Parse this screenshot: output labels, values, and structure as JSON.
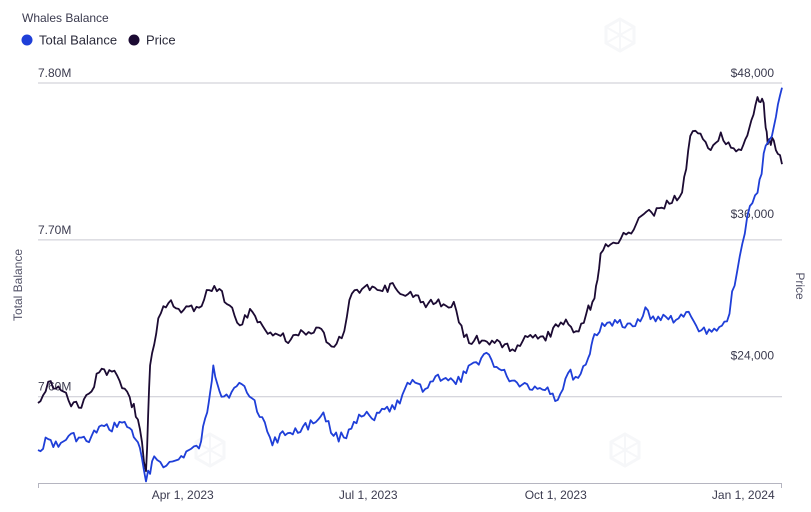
{
  "chart_data": {
    "type": "line",
    "title": "Whales Balance",
    "xlabel": "",
    "ylabel": "Total Balance",
    "y2label": "Price",
    "xlim": [
      "2023-01-20",
      "2024-01-20"
    ],
    "ylim": [
      7.545,
      7.8
    ],
    "y2lim": [
      14000,
      48000
    ],
    "legend_position": "top-left",
    "grid": "horizontal",
    "x_ticks": [
      {
        "date": "2023-04-01",
        "label": "Apr 1, 2023"
      },
      {
        "date": "2023-07-01",
        "label": "Jul 1, 2023"
      },
      {
        "date": "2023-10-01",
        "label": "Oct 1, 2023"
      },
      {
        "date": "2024-01-01",
        "label": "Jan 1, 2024"
      }
    ],
    "y_ticks": [
      {
        "value": 7.8,
        "label": "7.80M"
      },
      {
        "value": 7.7,
        "label": "7.70M"
      },
      {
        "value": 7.6,
        "label": "7.60M"
      }
    ],
    "y2_ticks": [
      {
        "value": 48000,
        "label": "$48,000"
      },
      {
        "value": 36000,
        "label": "$36,000"
      },
      {
        "value": 24000,
        "label": "$24,000"
      }
    ],
    "series": [
      {
        "name": "Total Balance",
        "axis": "left",
        "color": "#1f3fd8",
        "points": [
          [
            "2023-01-20",
            7.566
          ],
          [
            "2023-01-25",
            7.573
          ],
          [
            "2023-01-30",
            7.568
          ],
          [
            "2023-02-04",
            7.575
          ],
          [
            "2023-02-09",
            7.574
          ],
          [
            "2023-02-14",
            7.571
          ],
          [
            "2023-02-19",
            7.581
          ],
          [
            "2023-02-24",
            7.579
          ],
          [
            "2023-03-01",
            7.584
          ],
          [
            "2023-03-06",
            7.58
          ],
          [
            "2023-03-10",
            7.571
          ],
          [
            "2023-03-14",
            7.546
          ],
          [
            "2023-03-18",
            7.562
          ],
          [
            "2023-03-24",
            7.556
          ],
          [
            "2023-03-30",
            7.56
          ],
          [
            "2023-04-04",
            7.566
          ],
          [
            "2023-04-09",
            7.567
          ],
          [
            "2023-04-13",
            7.59
          ],
          [
            "2023-04-16",
            7.62
          ],
          [
            "2023-04-20",
            7.6
          ],
          [
            "2023-04-25",
            7.603
          ],
          [
            "2023-04-30",
            7.608
          ],
          [
            "2023-05-05",
            7.599
          ],
          [
            "2023-05-10",
            7.587
          ],
          [
            "2023-05-15",
            7.569
          ],
          [
            "2023-05-20",
            7.578
          ],
          [
            "2023-05-25",
            7.576
          ],
          [
            "2023-05-30",
            7.581
          ],
          [
            "2023-06-04",
            7.583
          ],
          [
            "2023-06-09",
            7.59
          ],
          [
            "2023-06-14",
            7.575
          ],
          [
            "2023-06-19",
            7.574
          ],
          [
            "2023-06-24",
            7.584
          ],
          [
            "2023-06-29",
            7.588
          ],
          [
            "2023-07-04",
            7.585
          ],
          [
            "2023-07-09",
            7.592
          ],
          [
            "2023-07-14",
            7.592
          ],
          [
            "2023-07-19",
            7.605
          ],
          [
            "2023-07-24",
            7.609
          ],
          [
            "2023-07-29",
            7.605
          ],
          [
            "2023-08-03",
            7.613
          ],
          [
            "2023-08-08",
            7.612
          ],
          [
            "2023-08-13",
            7.608
          ],
          [
            "2023-08-18",
            7.615
          ],
          [
            "2023-08-23",
            7.622
          ],
          [
            "2023-08-28",
            7.628
          ],
          [
            "2023-09-02",
            7.619
          ],
          [
            "2023-09-07",
            7.613
          ],
          [
            "2023-09-12",
            7.609
          ],
          [
            "2023-09-17",
            7.608
          ],
          [
            "2023-09-22",
            7.605
          ],
          [
            "2023-09-27",
            7.606
          ],
          [
            "2023-10-02",
            7.598
          ],
          [
            "2023-10-07",
            7.615
          ],
          [
            "2023-10-12",
            7.612
          ],
          [
            "2023-10-17",
            7.625
          ],
          [
            "2023-10-20",
            7.64
          ],
          [
            "2023-10-25",
            7.645
          ],
          [
            "2023-10-30",
            7.649
          ],
          [
            "2023-11-04",
            7.644
          ],
          [
            "2023-11-09",
            7.645
          ],
          [
            "2023-11-14",
            7.657
          ],
          [
            "2023-11-19",
            7.648
          ],
          [
            "2023-11-24",
            7.651
          ],
          [
            "2023-11-29",
            7.649
          ],
          [
            "2023-12-04",
            7.654
          ],
          [
            "2023-12-09",
            7.645
          ],
          [
            "2023-12-14",
            7.64
          ],
          [
            "2023-12-19",
            7.642
          ],
          [
            "2023-12-24",
            7.648
          ],
          [
            "2023-12-29",
            7.68
          ],
          [
            "2024-01-03",
            7.715
          ],
          [
            "2024-01-08",
            7.73
          ],
          [
            "2024-01-12",
            7.76
          ],
          [
            "2024-01-16",
            7.772
          ],
          [
            "2024-01-20",
            7.797
          ]
        ]
      },
      {
        "name": "Price",
        "axis": "right",
        "color": "#1c0b33",
        "points": [
          [
            "2023-01-20",
            20800
          ],
          [
            "2023-01-25",
            22600
          ],
          [
            "2023-01-30",
            22200
          ],
          [
            "2023-02-04",
            21000
          ],
          [
            "2023-02-09",
            20400
          ],
          [
            "2023-02-14",
            21600
          ],
          [
            "2023-02-19",
            23400
          ],
          [
            "2023-02-24",
            23600
          ],
          [
            "2023-03-01",
            22700
          ],
          [
            "2023-03-06",
            21300
          ],
          [
            "2023-03-10",
            19400
          ],
          [
            "2023-03-14",
            15000
          ],
          [
            "2023-03-16",
            24000
          ],
          [
            "2023-03-20",
            28000
          ],
          [
            "2023-03-25",
            29300
          ],
          [
            "2023-03-30",
            28800
          ],
          [
            "2023-04-04",
            29000
          ],
          [
            "2023-04-09",
            28900
          ],
          [
            "2023-04-14",
            30400
          ],
          [
            "2023-04-19",
            30500
          ],
          [
            "2023-04-24",
            29100
          ],
          [
            "2023-04-29",
            27400
          ],
          [
            "2023-05-04",
            28800
          ],
          [
            "2023-05-09",
            27700
          ],
          [
            "2023-05-14",
            26800
          ],
          [
            "2023-05-19",
            26500
          ],
          [
            "2023-05-24",
            26200
          ],
          [
            "2023-05-29",
            27000
          ],
          [
            "2023-06-03",
            26700
          ],
          [
            "2023-06-08",
            27100
          ],
          [
            "2023-06-13",
            25600
          ],
          [
            "2023-06-18",
            26300
          ],
          [
            "2023-06-23",
            30100
          ],
          [
            "2023-06-28",
            30500
          ],
          [
            "2023-07-03",
            30700
          ],
          [
            "2023-07-08",
            30300
          ],
          [
            "2023-07-13",
            31000
          ],
          [
            "2023-07-18",
            30000
          ],
          [
            "2023-07-23",
            29800
          ],
          [
            "2023-07-28",
            29400
          ],
          [
            "2023-08-02",
            29200
          ],
          [
            "2023-08-07",
            29200
          ],
          [
            "2023-08-12",
            29400
          ],
          [
            "2023-08-17",
            26400
          ],
          [
            "2023-08-22",
            26100
          ],
          [
            "2023-08-27",
            26100
          ],
          [
            "2023-09-01",
            25900
          ],
          [
            "2023-09-06",
            25800
          ],
          [
            "2023-09-11",
            25200
          ],
          [
            "2023-09-16",
            26500
          ],
          [
            "2023-09-21",
            26600
          ],
          [
            "2023-09-26",
            26100
          ],
          [
            "2023-10-01",
            27500
          ],
          [
            "2023-10-06",
            27900
          ],
          [
            "2023-10-11",
            26900
          ],
          [
            "2023-10-16",
            28400
          ],
          [
            "2023-10-20",
            29700
          ],
          [
            "2023-10-23",
            33500
          ],
          [
            "2023-10-28",
            34300
          ],
          [
            "2023-11-02",
            34800
          ],
          [
            "2023-11-07",
            35200
          ],
          [
            "2023-11-12",
            36700
          ],
          [
            "2023-11-17",
            37000
          ],
          [
            "2023-11-22",
            37400
          ],
          [
            "2023-11-27",
            37800
          ],
          [
            "2023-12-02",
            38700
          ],
          [
            "2023-12-06",
            43500
          ],
          [
            "2023-12-11",
            43700
          ],
          [
            "2023-12-16",
            42300
          ],
          [
            "2023-12-21",
            43800
          ],
          [
            "2023-12-26",
            42500
          ],
          [
            "2023-12-31",
            42300
          ],
          [
            "2024-01-04",
            44200
          ],
          [
            "2024-01-08",
            46800
          ],
          [
            "2024-01-11",
            46300
          ],
          [
            "2024-01-13",
            42800
          ],
          [
            "2024-01-16",
            43100
          ],
          [
            "2024-01-20",
            41100
          ]
        ]
      }
    ]
  }
}
